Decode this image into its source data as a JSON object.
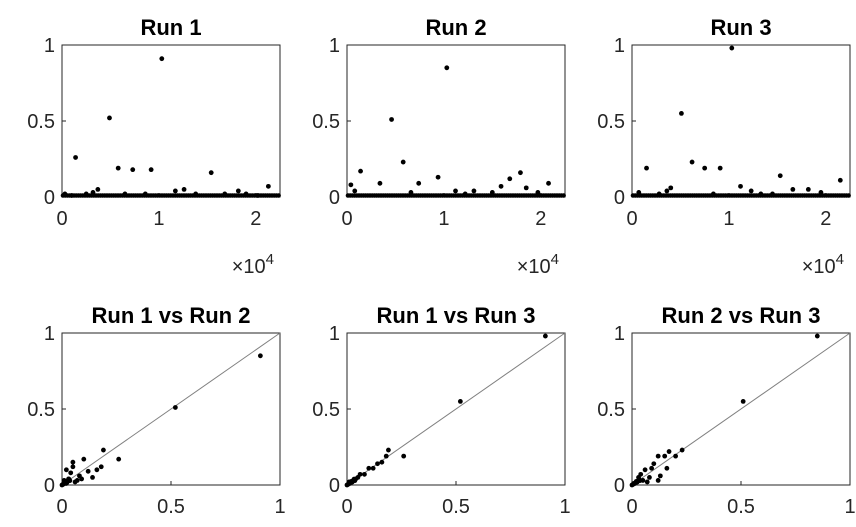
{
  "chart_data": [
    {
      "type": "scatter",
      "title": "Run 1",
      "xlim": [
        0,
        22500
      ],
      "ylim": [
        0,
        1
      ],
      "xticks": [
        0,
        10000,
        20000
      ],
      "xtick_labels": [
        "0",
        "1",
        "2"
      ],
      "x_multiplier": "×10",
      "x_multiplier_exp": "4",
      "yticks": [
        0,
        0.5,
        1
      ],
      "ytick_labels": [
        "0",
        "0.5",
        "1"
      ],
      "points": [
        [
          1400,
          0.26
        ],
        [
          1000,
          0.01
        ],
        [
          2500,
          0.02
        ],
        [
          3200,
          0.03
        ],
        [
          3700,
          0.05
        ],
        [
          4900,
          0.52
        ],
        [
          5800,
          0.19
        ],
        [
          7300,
          0.18
        ],
        [
          9200,
          0.18
        ],
        [
          10300,
          0.91
        ],
        [
          11700,
          0.04
        ],
        [
          12600,
          0.05
        ],
        [
          15400,
          0.16
        ],
        [
          16800,
          0.02
        ],
        [
          18200,
          0.04
        ],
        [
          19000,
          0.02
        ],
        [
          21300,
          0.07
        ],
        [
          6500,
          0.02
        ],
        [
          8600,
          0.02
        ],
        [
          13800,
          0.02
        ],
        [
          20200,
          0.01
        ],
        [
          300,
          0.02
        ]
      ]
    },
    {
      "type": "scatter",
      "title": "Run 2",
      "xlim": [
        0,
        22500
      ],
      "ylim": [
        0,
        1
      ],
      "xticks": [
        0,
        10000,
        20000
      ],
      "xtick_labels": [
        "0",
        "1",
        "2"
      ],
      "x_multiplier": "×10",
      "x_multiplier_exp": "4",
      "yticks": [
        0,
        0.5,
        1
      ],
      "ytick_labels": [
        "0",
        "0.5",
        "1"
      ],
      "points": [
        [
          400,
          0.08
        ],
        [
          800,
          0.04
        ],
        [
          1400,
          0.17
        ],
        [
          3400,
          0.09
        ],
        [
          4600,
          0.51
        ],
        [
          5800,
          0.23
        ],
        [
          7400,
          0.09
        ],
        [
          9400,
          0.13
        ],
        [
          10300,
          0.85
        ],
        [
          11200,
          0.04
        ],
        [
          13100,
          0.04
        ],
        [
          15000,
          0.03
        ],
        [
          15900,
          0.07
        ],
        [
          16800,
          0.12
        ],
        [
          17900,
          0.16
        ],
        [
          18500,
          0.06
        ],
        [
          20800,
          0.09
        ],
        [
          6600,
          0.03
        ],
        [
          12200,
          0.02
        ],
        [
          19700,
          0.03
        ]
      ]
    },
    {
      "type": "scatter",
      "title": "Run 3",
      "xlim": [
        0,
        22500
      ],
      "ylim": [
        0,
        1
      ],
      "xticks": [
        0,
        10000,
        20000
      ],
      "xtick_labels": [
        "0",
        "1",
        "2"
      ],
      "x_multiplier": "×10",
      "x_multiplier_exp": "4",
      "yticks": [
        0,
        0.5,
        1
      ],
      "ytick_labels": [
        "0",
        "0.5",
        "1"
      ],
      "points": [
        [
          700,
          0.03
        ],
        [
          1500,
          0.19
        ],
        [
          2800,
          0.02
        ],
        [
          3600,
          0.04
        ],
        [
          4000,
          0.06
        ],
        [
          5100,
          0.55
        ],
        [
          6200,
          0.23
        ],
        [
          7500,
          0.19
        ],
        [
          9100,
          0.19
        ],
        [
          10300,
          0.98
        ],
        [
          11200,
          0.07
        ],
        [
          12300,
          0.04
        ],
        [
          13300,
          0.02
        ],
        [
          15300,
          0.14
        ],
        [
          16600,
          0.05
        ],
        [
          18200,
          0.05
        ],
        [
          19500,
          0.03
        ],
        [
          21500,
          0.11
        ],
        [
          8400,
          0.02
        ],
        [
          14500,
          0.02
        ]
      ]
    },
    {
      "type": "scatter",
      "title": "Run 1 vs Run 2",
      "xlim": [
        0,
        1
      ],
      "ylim": [
        0,
        1
      ],
      "xticks": [
        0,
        0.5,
        1
      ],
      "xtick_labels": [
        "0",
        "0.5",
        "1"
      ],
      "yticks": [
        0,
        0.5,
        1
      ],
      "ytick_labels": [
        "0",
        "0.5",
        "1"
      ],
      "reference_line": true,
      "points": [
        [
          0.02,
          0.01
        ],
        [
          0.03,
          0.04
        ],
        [
          0.04,
          0.08
        ],
        [
          0.05,
          0.12
        ],
        [
          0.06,
          0.02
        ],
        [
          0.08,
          0.06
        ],
        [
          0.1,
          0.17
        ],
        [
          0.12,
          0.09
        ],
        [
          0.14,
          0.05
        ],
        [
          0.02,
          0.1
        ],
        [
          0.05,
          0.15
        ],
        [
          0.16,
          0.1
        ],
        [
          0.18,
          0.12
        ],
        [
          0.19,
          0.23
        ],
        [
          0.26,
          0.17
        ],
        [
          0.52,
          0.51
        ],
        [
          0.91,
          0.85
        ],
        [
          0.01,
          0.03
        ],
        [
          0.07,
          0.03
        ],
        [
          0.09,
          0.04
        ]
      ]
    },
    {
      "type": "scatter",
      "title": "Run 1 vs Run 3",
      "xlim": [
        0,
        1
      ],
      "ylim": [
        0,
        1
      ],
      "xticks": [
        0,
        0.5,
        1
      ],
      "xtick_labels": [
        "0",
        "0.5",
        "1"
      ],
      "yticks": [
        0,
        0.5,
        1
      ],
      "ytick_labels": [
        "0",
        "0.5",
        "1"
      ],
      "reference_line": true,
      "points": [
        [
          0.02,
          0.02
        ],
        [
          0.03,
          0.03
        ],
        [
          0.04,
          0.04
        ],
        [
          0.05,
          0.05
        ],
        [
          0.06,
          0.07
        ],
        [
          0.08,
          0.07
        ],
        [
          0.1,
          0.11
        ],
        [
          0.14,
          0.14
        ],
        [
          0.16,
          0.15
        ],
        [
          0.18,
          0.19
        ],
        [
          0.19,
          0.23
        ],
        [
          0.26,
          0.19
        ],
        [
          0.52,
          0.55
        ],
        [
          0.91,
          0.98
        ],
        [
          0.12,
          0.11
        ],
        [
          0.01,
          0.02
        ]
      ]
    },
    {
      "type": "scatter",
      "title": "Run 2 vs Run 3",
      "xlim": [
        0,
        1
      ],
      "ylim": [
        0,
        1
      ],
      "xticks": [
        0,
        0.5,
        1
      ],
      "xtick_labels": [
        "0",
        "0.5",
        "1"
      ],
      "yticks": [
        0,
        0.5,
        1
      ],
      "ytick_labels": [
        "0",
        "0.5",
        "1"
      ],
      "reference_line": true,
      "points": [
        [
          0.02,
          0.02
        ],
        [
          0.03,
          0.05
        ],
        [
          0.04,
          0.07
        ],
        [
          0.05,
          0.03
        ],
        [
          0.06,
          0.1
        ],
        [
          0.08,
          0.05
        ],
        [
          0.09,
          0.11
        ],
        [
          0.1,
          0.14
        ],
        [
          0.12,
          0.19
        ],
        [
          0.13,
          0.06
        ],
        [
          0.15,
          0.19
        ],
        [
          0.16,
          0.11
        ],
        [
          0.17,
          0.22
        ],
        [
          0.2,
          0.19
        ],
        [
          0.23,
          0.23
        ],
        [
          0.51,
          0.55
        ],
        [
          0.85,
          0.98
        ],
        [
          0.12,
          0.03
        ],
        [
          0.07,
          0.02
        ],
        [
          0.01,
          0.01
        ]
      ]
    }
  ]
}
